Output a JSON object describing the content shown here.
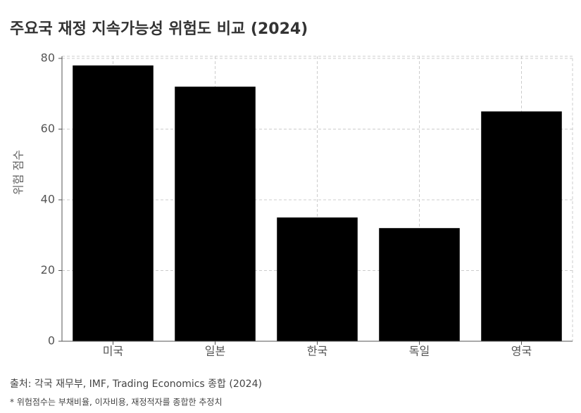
{
  "chart_data": {
    "type": "bar",
    "title": "주요국 재정 지속가능성 위험도 비교 (2024)",
    "y_label": "위험 점수",
    "categories": [
      "미국",
      "일본",
      "한국",
      "독일",
      "영국"
    ],
    "values": [
      78,
      72,
      35,
      32,
      65
    ],
    "color": "#000000",
    "ylim": [
      0,
      80
    ],
    "yticks": [
      0,
      20,
      40,
      60,
      80
    ],
    "grid": true,
    "source": "출처: 각국 재무부, IMF, Trading Economics 종합 (2024)",
    "note": "* 위험점수는 부채비율, 이자비용, 재정적자를 종합한 추정치"
  }
}
